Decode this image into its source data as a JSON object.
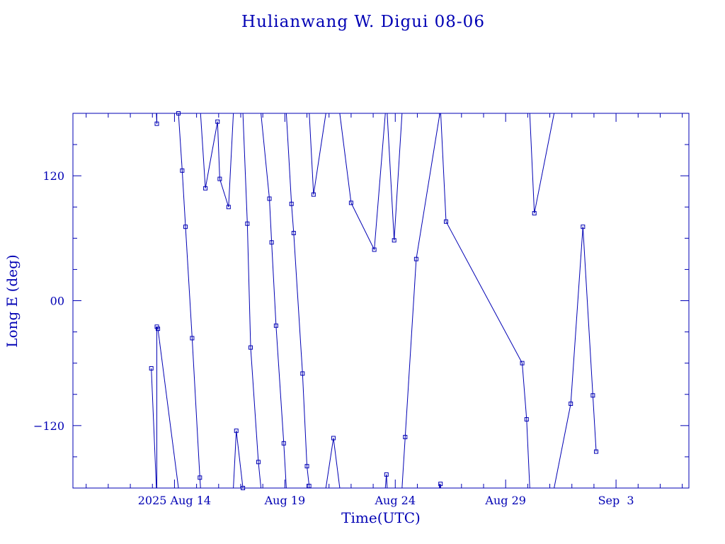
{
  "chart_data": {
    "type": "line",
    "title": "Hulianwang W. Digui 08-06",
    "xlabel": "Time(UTC)",
    "ylabel": "Long E (deg)",
    "x_unit": "day of month (Aug 2025; values above 31 are in September)",
    "xlim": [
      9.4,
      37.3
    ],
    "ylim": [
      -180,
      180
    ],
    "yticks": [
      -120,
      0,
      120
    ],
    "ytick_labels": [
      "−120",
      "00",
      "120"
    ],
    "xticks": [
      14,
      19,
      24,
      29,
      34
    ],
    "xtick_labels": [
      "2025 Aug 14",
      "Aug 19",
      "Aug 24",
      "Aug 29",
      "Sep  3"
    ],
    "wrap_range": [
      -180,
      180
    ],
    "color": "#0000b4",
    "grid": false,
    "series": [
      {
        "points": [
          [
            12.95,
            -65
          ],
          [
            13.2,
            170
          ],
          [
            13.2,
            -25
          ],
          [
            13.25,
            -27
          ],
          [
            14.18,
            180
          ],
          [
            14.35,
            125
          ],
          [
            14.5,
            71
          ],
          [
            14.8,
            -36
          ],
          [
            15.15,
            -170
          ],
          [
            15.4,
            108
          ],
          [
            15.95,
            172
          ],
          [
            16.05,
            117
          ],
          [
            16.45,
            90
          ],
          [
            16.8,
            -125
          ],
          [
            17.1,
            -180
          ],
          [
            17.3,
            74
          ],
          [
            17.45,
            -45
          ],
          [
            17.8,
            -155
          ],
          [
            18.3,
            98
          ],
          [
            18.4,
            56
          ],
          [
            18.6,
            -24
          ],
          [
            18.95,
            -137
          ],
          [
            19.3,
            93
          ],
          [
            19.4,
            65
          ],
          [
            19.8,
            -70
          ],
          [
            20.0,
            -159
          ],
          [
            20.1,
            -178
          ],
          [
            20.3,
            102
          ],
          [
            21.2,
            -132
          ],
          [
            22.0,
            94
          ],
          [
            23.05,
            49
          ],
          [
            23.6,
            -167
          ],
          [
            23.95,
            58
          ],
          [
            24.45,
            -131
          ],
          [
            24.95,
            40
          ],
          [
            26.05,
            -176
          ],
          [
            26.3,
            76
          ],
          [
            29.75,
            -60
          ],
          [
            29.95,
            -114
          ],
          [
            30.3,
            84
          ],
          [
            31.95,
            -99
          ],
          [
            32.5,
            71
          ],
          [
            32.95,
            -91
          ],
          [
            33.1,
            -145
          ]
        ]
      }
    ]
  }
}
